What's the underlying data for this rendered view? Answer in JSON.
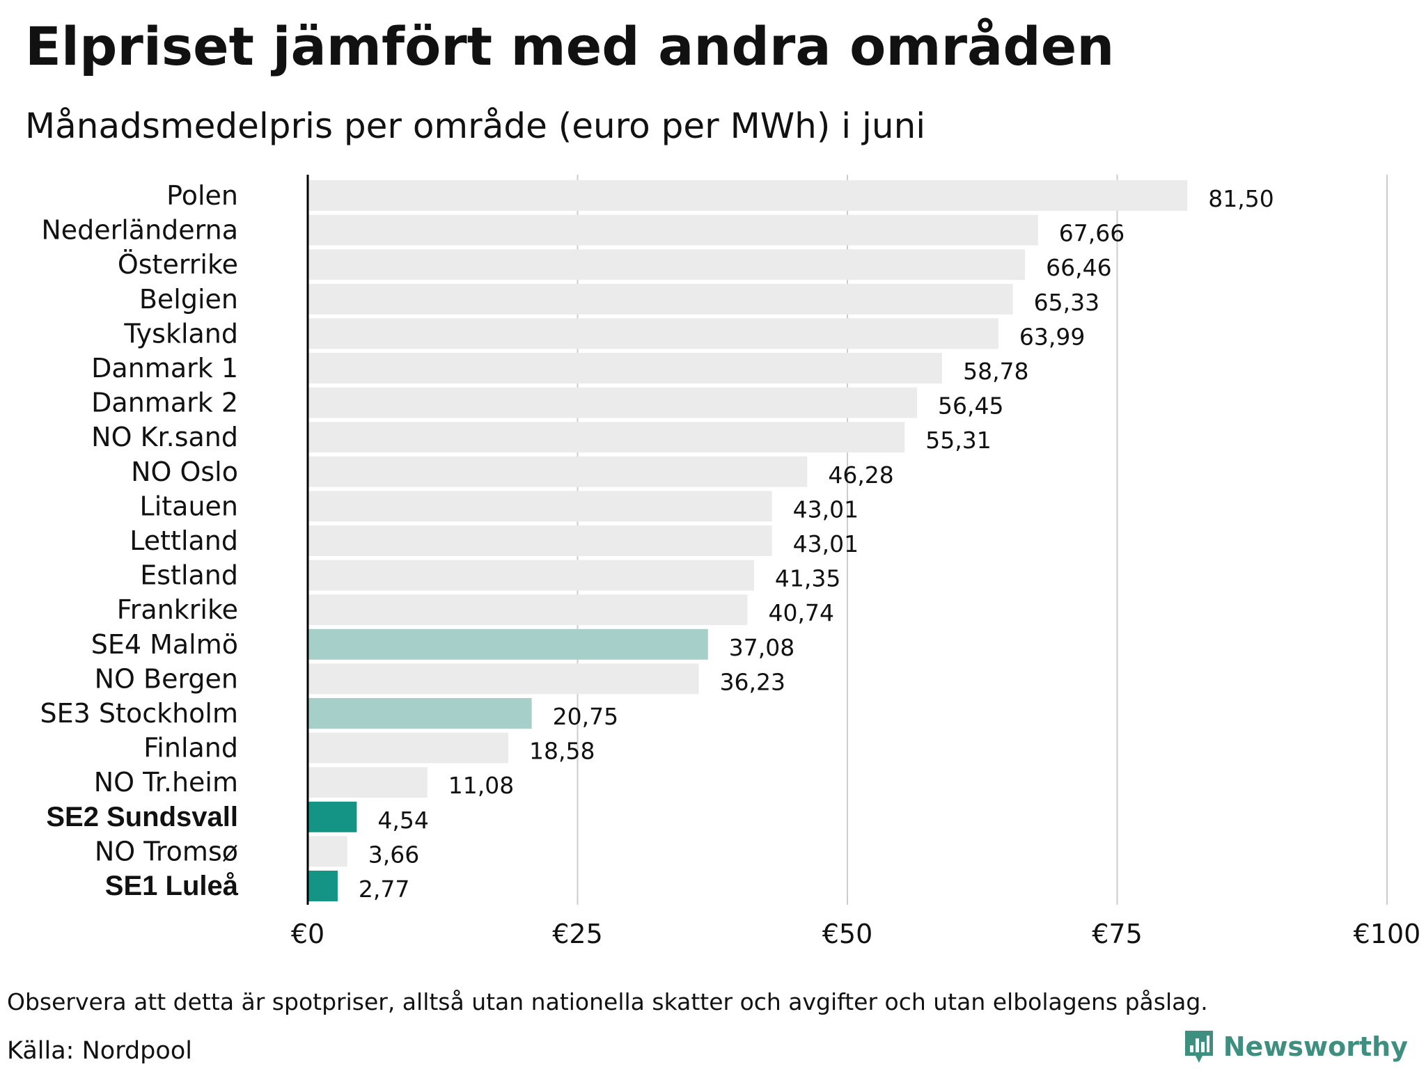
{
  "header": {
    "title": "Elpriset jämfört med andra områden",
    "subtitle": "Månadsmedelpris per område (euro per MWh) i juni"
  },
  "footer": {
    "note": "Observera att detta är spotpriser, alltså utan nationella skatter och avgifter och utan elbolagens påslag.",
    "source": "Källa: Nordpool",
    "brand": "Newsworthy"
  },
  "colors": {
    "default_bar": "#ebebeb",
    "highlight_light": "#a6cfca",
    "highlight_dark": "#139484",
    "gridline": "#cccccc",
    "axis": "#000000",
    "brand": "#3f8f80"
  },
  "icons": {
    "brand_logo": "bar-chart-speech-bubble-icon"
  },
  "chart_data": {
    "type": "bar",
    "orientation": "horizontal",
    "categories": [
      "Polen",
      "Nederländerna",
      "Österrike",
      "Belgien",
      "Tyskland",
      "Danmark  1",
      "Danmark  2",
      "NO Kr.sand",
      "NO Oslo",
      "Litauen",
      "Lettland",
      "Estland",
      "Frankrike",
      "SE4  Malmö",
      "NO Bergen",
      "SE3  Stockholm",
      "Finland",
      "NO Tr.heim",
      "SE2 Sundsvall",
      "NO Tromsø",
      "SE1 Luleå"
    ],
    "values": [
      81.5,
      67.66,
      66.46,
      65.33,
      63.99,
      58.78,
      56.45,
      55.31,
      46.28,
      43.01,
      43.01,
      41.35,
      40.74,
      37.08,
      36.23,
      20.75,
      18.58,
      11.08,
      4.54,
      3.66,
      2.77
    ],
    "value_labels": [
      "81,50",
      "67,66",
      "66,46",
      "65,33",
      "63,99",
      "58,78",
      "56,45",
      "55,31",
      "46,28",
      "43,01",
      "43,01",
      "41,35",
      "40,74",
      "37,08",
      "36,23",
      "20,75",
      "18,58",
      "11,08",
      "4,54",
      "3,66",
      "2,77"
    ],
    "highlight": [
      "none",
      "none",
      "none",
      "none",
      "none",
      "none",
      "none",
      "none",
      "none",
      "none",
      "none",
      "none",
      "none",
      "light",
      "none",
      "light",
      "none",
      "none",
      "dark",
      "none",
      "dark"
    ],
    "bold_labels": [
      "SE2 Sundsvall",
      "SE1 Luleå"
    ],
    "xlim": [
      0,
      100
    ],
    "x_ticks": [
      0,
      25,
      50,
      75,
      100
    ],
    "x_tick_labels": [
      "€0",
      "€25",
      "€50",
      "€75",
      "€100"
    ],
    "grid": "vertical",
    "legend": "none"
  }
}
